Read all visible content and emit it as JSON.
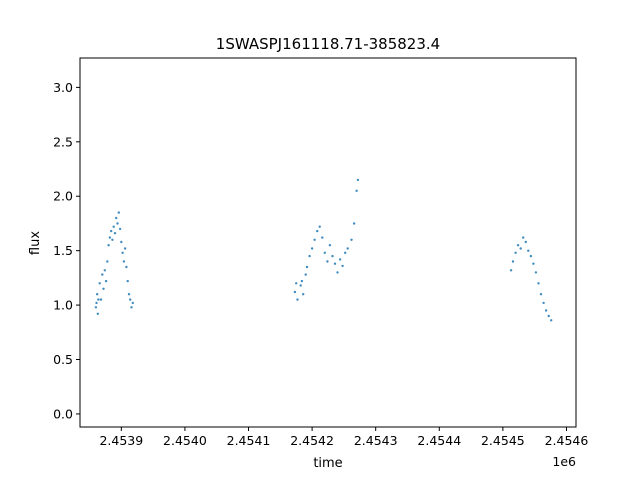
{
  "chart_data": {
    "type": "scatter",
    "title": "1SWASPJ161118.71-385823.4",
    "xlabel": "time",
    "ylabel": "flux",
    "x_offset_label": "1e6",
    "xlim": [
      2453835,
      2454615
    ],
    "ylim": [
      -0.12,
      3.27
    ],
    "x_ticks": [
      2453900,
      2454000,
      2454100,
      2454200,
      2454300,
      2454400,
      2454500,
      2454600
    ],
    "x_tick_labels": [
      "2.4539",
      "2.4540",
      "2.4541",
      "2.4542",
      "2.4543",
      "2.4544",
      "2.4545",
      "2.4546"
    ],
    "y_ticks": [
      0.0,
      0.5,
      1.0,
      1.5,
      2.0,
      2.5,
      3.0
    ],
    "y_tick_labels": [
      "0.0",
      "0.5",
      "1.0",
      "1.5",
      "2.0",
      "2.5",
      "3.0"
    ],
    "grid": false,
    "marker_color": "#1f77b4",
    "series": [
      {
        "points": [
          [
            2453860,
            0.98
          ],
          [
            2453861,
            1.02
          ],
          [
            2453862,
            1.1
          ],
          [
            2453863,
            0.92
          ],
          [
            2453864,
            1.05
          ],
          [
            2453866,
            1.2
          ],
          [
            2453868,
            1.05
          ],
          [
            2453870,
            1.28
          ],
          [
            2453872,
            1.15
          ],
          [
            2453874,
            1.32
          ],
          [
            2453876,
            1.22
          ],
          [
            2453878,
            1.4
          ],
          [
            2453880,
            1.55
          ],
          [
            2453882,
            1.62
          ],
          [
            2453884,
            1.68
          ],
          [
            2453886,
            1.6
          ],
          [
            2453888,
            1.72
          ],
          [
            2453890,
            1.66
          ],
          [
            2453892,
            1.8
          ],
          [
            2453894,
            1.75
          ],
          [
            2453896,
            1.85
          ],
          [
            2453898,
            1.7
          ],
          [
            2453900,
            1.58
          ],
          [
            2453902,
            1.48
          ],
          [
            2453904,
            1.4
          ],
          [
            2453906,
            1.52
          ],
          [
            2453908,
            1.35
          ],
          [
            2453910,
            1.22
          ],
          [
            2453912,
            1.1
          ],
          [
            2453914,
            1.05
          ],
          [
            2453916,
            0.98
          ],
          [
            2453918,
            1.02
          ],
          [
            2454173,
            1.12
          ],
          [
            2454175,
            1.2
          ],
          [
            2454177,
            1.05
          ],
          [
            2454182,
            1.18
          ],
          [
            2454184,
            1.22
          ],
          [
            2454186,
            1.1
          ],
          [
            2454190,
            1.28
          ],
          [
            2454192,
            1.35
          ],
          [
            2454196,
            1.45
          ],
          [
            2454200,
            1.52
          ],
          [
            2454204,
            1.6
          ],
          [
            2454208,
            1.68
          ],
          [
            2454212,
            1.72
          ],
          [
            2454216,
            1.62
          ],
          [
            2454220,
            1.48
          ],
          [
            2454224,
            1.4
          ],
          [
            2454228,
            1.55
          ],
          [
            2454232,
            1.45
          ],
          [
            2454236,
            1.38
          ],
          [
            2454240,
            1.3
          ],
          [
            2454244,
            1.42
          ],
          [
            2454248,
            1.36
          ],
          [
            2454252,
            1.48
          ],
          [
            2454256,
            1.52
          ],
          [
            2454262,
            1.6
          ],
          [
            2454266,
            1.75
          ],
          [
            2454270,
            2.05
          ],
          [
            2454272,
            2.15
          ],
          [
            2454513,
            1.32
          ],
          [
            2454516,
            1.4
          ],
          [
            2454520,
            1.48
          ],
          [
            2454524,
            1.55
          ],
          [
            2454528,
            1.52
          ],
          [
            2454532,
            1.62
          ],
          [
            2454536,
            1.58
          ],
          [
            2454540,
            1.5
          ],
          [
            2454544,
            1.45
          ],
          [
            2454548,
            1.38
          ],
          [
            2454552,
            1.3
          ],
          [
            2454556,
            1.2
          ],
          [
            2454560,
            1.1
          ],
          [
            2454564,
            1.02
          ],
          [
            2454568,
            0.95
          ],
          [
            2454572,
            0.9
          ],
          [
            2454576,
            0.86
          ]
        ]
      }
    ]
  }
}
